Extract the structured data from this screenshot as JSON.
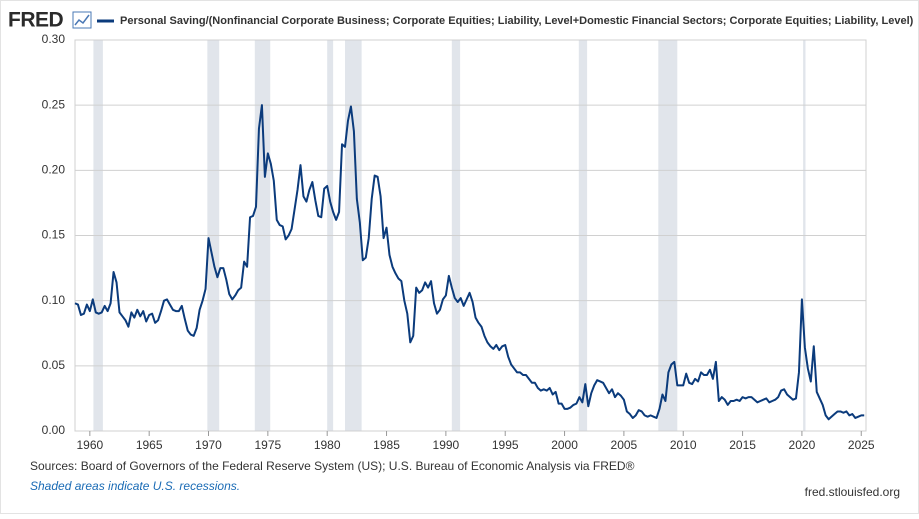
{
  "chart_data": {
    "type": "line",
    "logo": "FRED",
    "source": "Sources: Board of Governors of the Federal Reserve System (US); U.S. Bureau of Economic Analysis via FRED®",
    "note": "Shaded areas indicate U.S. recessions.",
    "credit": "fred.stlouisfed.org",
    "xlim": [
      1958.75,
      2025.4
    ],
    "ylim": [
      0,
      0.3
    ],
    "xticks": [
      1960,
      1965,
      1970,
      1975,
      1980,
      1985,
      1990,
      1995,
      2000,
      2005,
      2010,
      2015,
      2020,
      2025
    ],
    "yticks": [
      {
        "value": 0,
        "label": "0.00"
      },
      {
        "value": 0.05,
        "label": "0.05"
      },
      {
        "value": 0.1,
        "label": "0.10"
      },
      {
        "value": 0.15,
        "label": "0.15"
      },
      {
        "value": 0.2,
        "label": "0.20"
      },
      {
        "value": 0.25,
        "label": "0.25"
      },
      {
        "value": 0.3,
        "label": "0.30"
      }
    ],
    "grid": true,
    "recession_color": "#e1e5eb",
    "recessions": [
      {
        "start": 1960.3,
        "end": 1961.1
      },
      {
        "start": 1969.9,
        "end": 1970.9
      },
      {
        "start": 1973.9,
        "end": 1975.2
      },
      {
        "start": 1980.0,
        "end": 1980.5
      },
      {
        "start": 1981.5,
        "end": 1982.9
      },
      {
        "start": 1990.5,
        "end": 1991.2
      },
      {
        "start": 2001.2,
        "end": 2001.9
      },
      {
        "start": 2007.9,
        "end": 2009.5
      },
      {
        "start": 2020.1,
        "end": 2020.3
      }
    ],
    "x": [
      1958.75,
      1959,
      1959.25,
      1959.5,
      1959.75,
      1960,
      1960.25,
      1960.5,
      1960.75,
      1961,
      1961.25,
      1961.5,
      1961.75,
      1962,
      1962.25,
      1962.5,
      1962.75,
      1963,
      1963.25,
      1963.5,
      1963.75,
      1964,
      1964.25,
      1964.5,
      1964.75,
      1965,
      1965.25,
      1965.5,
      1965.75,
      1966,
      1966.25,
      1966.5,
      1966.75,
      1967,
      1967.25,
      1967.5,
      1967.75,
      1968,
      1968.25,
      1968.5,
      1968.75,
      1969,
      1969.25,
      1969.5,
      1969.75,
      1970,
      1970.25,
      1970.5,
      1970.75,
      1971,
      1971.25,
      1971.5,
      1971.75,
      1972,
      1972.25,
      1972.5,
      1972.75,
      1973,
      1973.25,
      1973.5,
      1973.75,
      1974,
      1974.25,
      1974.5,
      1974.75,
      1975,
      1975.25,
      1975.5,
      1975.75,
      1976,
      1976.25,
      1976.5,
      1976.75,
      1977,
      1977.25,
      1977.5,
      1977.75,
      1978,
      1978.25,
      1978.5,
      1978.75,
      1979,
      1979.25,
      1979.5,
      1979.75,
      1980,
      1980.25,
      1980.5,
      1980.75,
      1981,
      1981.25,
      1981.5,
      1981.75,
      1982,
      1982.25,
      1982.5,
      1982.75,
      1983,
      1983.25,
      1983.5,
      1983.75,
      1984,
      1984.25,
      1984.5,
      1984.75,
      1985,
      1985.25,
      1985.5,
      1985.75,
      1986,
      1986.25,
      1986.5,
      1986.75,
      1987,
      1987.25,
      1987.5,
      1987.75,
      1988,
      1988.25,
      1988.5,
      1988.75,
      1989,
      1989.25,
      1989.5,
      1989.75,
      1990,
      1990.25,
      1990.5,
      1990.75,
      1991,
      1991.25,
      1991.5,
      1991.75,
      1992,
      1992.25,
      1992.5,
      1992.75,
      1993,
      1993.25,
      1993.5,
      1993.75,
      1994,
      1994.25,
      1994.5,
      1994.75,
      1995,
      1995.25,
      1995.5,
      1995.75,
      1996,
      1996.25,
      1996.5,
      1996.75,
      1997,
      1997.25,
      1997.5,
      1997.75,
      1998,
      1998.25,
      1998.5,
      1998.75,
      1999,
      1999.25,
      1999.5,
      1999.75,
      2000,
      2000.25,
      2000.5,
      2000.75,
      2001,
      2001.25,
      2001.5,
      2001.75,
      2002,
      2002.25,
      2002.5,
      2002.75,
      2003,
      2003.25,
      2003.5,
      2003.75,
      2004,
      2004.25,
      2004.5,
      2004.75,
      2005,
      2005.25,
      2005.5,
      2005.75,
      2006,
      2006.25,
      2006.5,
      2006.75,
      2007,
      2007.25,
      2007.5,
      2007.75,
      2008,
      2008.25,
      2008.5,
      2008.75,
      2009,
      2009.25,
      2009.5,
      2009.75,
      2010,
      2010.25,
      2010.5,
      2010.75,
      2011,
      2011.25,
      2011.5,
      2011.75,
      2012,
      2012.25,
      2012.5,
      2012.75,
      2013,
      2013.25,
      2013.5,
      2013.75,
      2014,
      2014.25,
      2014.5,
      2014.75,
      2015,
      2015.25,
      2015.5,
      2015.75,
      2016,
      2016.25,
      2016.5,
      2016.75,
      2017,
      2017.25,
      2017.5,
      2017.75,
      2018,
      2018.25,
      2018.5,
      2018.75,
      2019,
      2019.25,
      2019.5,
      2019.75,
      2020,
      2020.25,
      2020.5,
      2020.75,
      2021,
      2021.25,
      2021.5,
      2021.75,
      2022,
      2022.25,
      2022.5,
      2022.75,
      2023,
      2023.25,
      2023.5,
      2023.75,
      2024,
      2024.25,
      2024.5,
      2024.75,
      2025,
      2025.25
    ],
    "series": [
      {
        "name": "Personal Saving/(Nonfinancial Corporate Business; Corporate Equities; Liability, Level+Domestic Financial Sectors; Corporate Equities; Liability, Level)",
        "color": "#0b3b7c",
        "values": [
          0.098,
          0.097,
          0.089,
          0.09,
          0.097,
          0.092,
          0.101,
          0.091,
          0.09,
          0.091,
          0.096,
          0.092,
          0.098,
          0.122,
          0.114,
          0.091,
          0.088,
          0.085,
          0.08,
          0.091,
          0.087,
          0.093,
          0.088,
          0.092,
          0.084,
          0.089,
          0.09,
          0.083,
          0.085,
          0.092,
          0.1,
          0.101,
          0.097,
          0.093,
          0.092,
          0.092,
          0.096,
          0.086,
          0.077,
          0.074,
          0.073,
          0.079,
          0.093,
          0.1,
          0.109,
          0.148,
          0.137,
          0.126,
          0.118,
          0.125,
          0.125,
          0.116,
          0.105,
          0.101,
          0.104,
          0.108,
          0.11,
          0.13,
          0.126,
          0.164,
          0.165,
          0.172,
          0.232,
          0.25,
          0.195,
          0.213,
          0.205,
          0.192,
          0.162,
          0.158,
          0.157,
          0.147,
          0.15,
          0.155,
          0.17,
          0.185,
          0.204,
          0.18,
          0.176,
          0.185,
          0.191,
          0.177,
          0.165,
          0.164,
          0.186,
          0.188,
          0.176,
          0.168,
          0.162,
          0.168,
          0.22,
          0.218,
          0.238,
          0.249,
          0.23,
          0.178,
          0.16,
          0.131,
          0.133,
          0.148,
          0.178,
          0.196,
          0.195,
          0.18,
          0.148,
          0.156,
          0.135,
          0.126,
          0.121,
          0.117,
          0.115,
          0.1,
          0.09,
          0.068,
          0.073,
          0.11,
          0.106,
          0.108,
          0.114,
          0.11,
          0.115,
          0.098,
          0.09,
          0.093,
          0.101,
          0.104,
          0.119,
          0.11,
          0.102,
          0.099,
          0.102,
          0.096,
          0.101,
          0.106,
          0.099,
          0.087,
          0.083,
          0.08,
          0.073,
          0.068,
          0.065,
          0.063,
          0.066,
          0.062,
          0.065,
          0.066,
          0.057,
          0.051,
          0.048,
          0.045,
          0.045,
          0.043,
          0.043,
          0.04,
          0.037,
          0.037,
          0.033,
          0.031,
          0.032,
          0.031,
          0.033,
          0.028,
          0.03,
          0.021,
          0.021,
          0.017,
          0.017,
          0.018,
          0.02,
          0.021,
          0.026,
          0.022,
          0.036,
          0.019,
          0.029,
          0.035,
          0.039,
          0.038,
          0.037,
          0.033,
          0.029,
          0.032,
          0.026,
          0.029,
          0.027,
          0.024,
          0.015,
          0.013,
          0.01,
          0.012,
          0.016,
          0.015,
          0.012,
          0.011,
          0.012,
          0.011,
          0.01,
          0.017,
          0.028,
          0.023,
          0.045,
          0.051,
          0.053,
          0.035,
          0.035,
          0.035,
          0.044,
          0.037,
          0.036,
          0.04,
          0.038,
          0.045,
          0.043,
          0.043,
          0.047,
          0.04,
          0.053,
          0.023,
          0.026,
          0.024,
          0.02,
          0.023,
          0.023,
          0.024,
          0.023,
          0.026,
          0.025,
          0.026,
          0.026,
          0.024,
          0.022,
          0.023,
          0.024,
          0.025,
          0.022,
          0.023,
          0.024,
          0.026,
          0.031,
          0.032,
          0.028,
          0.026,
          0.024,
          0.025,
          0.045,
          0.101,
          0.064,
          0.048,
          0.038,
          0.065,
          0.03,
          0.025,
          0.02,
          0.012,
          0.009,
          0.011,
          0.013,
          0.015,
          0.015,
          0.014,
          0.015,
          0.012,
          0.013,
          0.01,
          0.011,
          0.012,
          0.012
        ]
      }
    ]
  }
}
